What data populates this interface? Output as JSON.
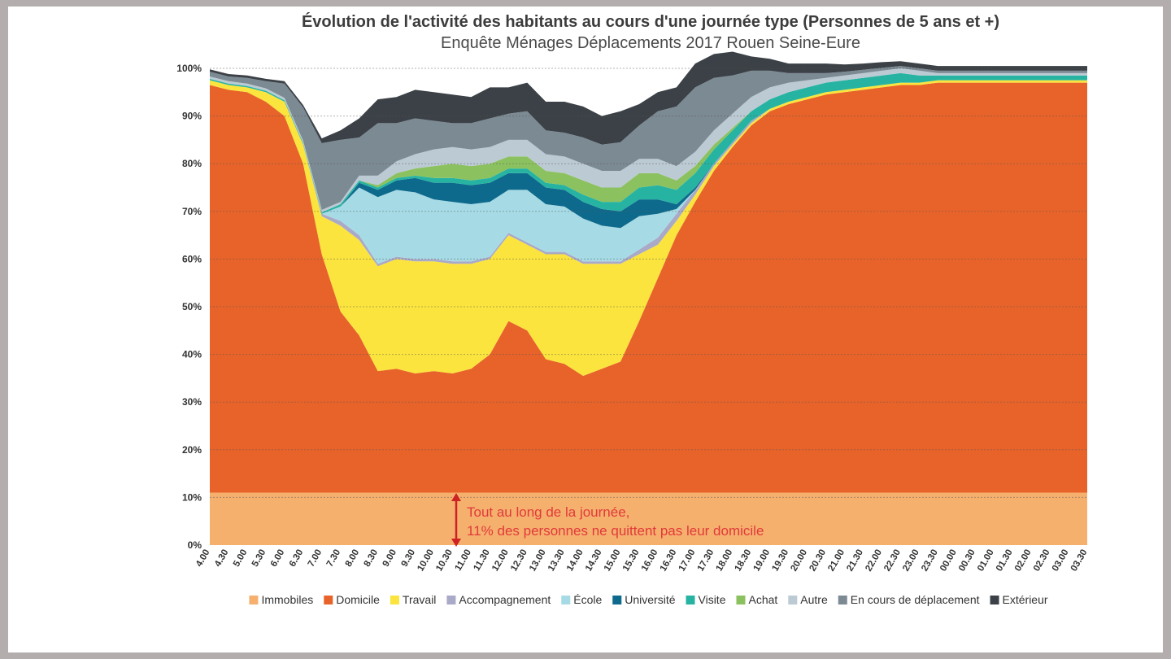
{
  "chart_data": {
    "type": "area",
    "stacked": true,
    "title": "Évolution de l'activité des habitants au cours d'une journée type (Personnes de 5 ans et +)",
    "subtitle": "Enquête Ménages Déplacements 2017 Rouen Seine-Eure",
    "y_ticks": [
      "0%",
      "10%",
      "20%",
      "30%",
      "40%",
      "50%",
      "60%",
      "70%",
      "80%",
      "90%",
      "100%"
    ],
    "ylim": [
      0,
      100
    ],
    "grid": true,
    "legend_position": "bottom",
    "categories": [
      "4.00",
      "4.30",
      "5.00",
      "5.30",
      "6.00",
      "6.30",
      "7.00",
      "7.30",
      "8.00",
      "8.30",
      "9.00",
      "9.30",
      "10.00",
      "10.30",
      "11.00",
      "11.30",
      "12.00",
      "12.30",
      "13.00",
      "13.30",
      "14.00",
      "14.30",
      "15.00",
      "15.30",
      "16.00",
      "16.30",
      "17.00",
      "17.30",
      "18.00",
      "18.30",
      "19.00",
      "19.30",
      "20.00",
      "20.30",
      "21.00",
      "21.30",
      "22.00",
      "22.30",
      "23.00",
      "23.30",
      "00.00",
      "00.30",
      "01.00",
      "01.30",
      "02.00",
      "02.30",
      "03.00",
      "03.30"
    ],
    "series": [
      {
        "name": "Immobiles",
        "color": "#f6b06e",
        "values": [
          11,
          11,
          11,
          11,
          11,
          11,
          11,
          11,
          11,
          11,
          11,
          11,
          11,
          11,
          11,
          11,
          11,
          11,
          11,
          11,
          11,
          11,
          11,
          11,
          11,
          11,
          11,
          11,
          11,
          11,
          11,
          11,
          11,
          11,
          11,
          11,
          11,
          11,
          11,
          11,
          11,
          11,
          11,
          11,
          11,
          11,
          11,
          11
        ]
      },
      {
        "name": "Domicile",
        "color": "#e8632a",
        "values": [
          85.5,
          84.5,
          84,
          82,
          79,
          69,
          50,
          38,
          33,
          25.5,
          26,
          25,
          25.5,
          25,
          26,
          29,
          36,
          34,
          28,
          27,
          24.5,
          26,
          27.5,
          36,
          45,
          54,
          61,
          67.5,
          72.5,
          77,
          80,
          81.5,
          82.5,
          83.5,
          84,
          84.5,
          85,
          85.5,
          85.5,
          86,
          86,
          86,
          86,
          86,
          86,
          86,
          86,
          86
        ]
      },
      {
        "name": "Travail",
        "color": "#fbe43d",
        "values": [
          1,
          1,
          1,
          2,
          3,
          4,
          8,
          18,
          20,
          22,
          23,
          23.5,
          23,
          23,
          22,
          20,
          18,
          18,
          22,
          23,
          23.5,
          22,
          20.5,
          14,
          7,
          3,
          1.5,
          1,
          0.5,
          0.5,
          0.5,
          0.5,
          0.5,
          0.5,
          0.5,
          0.5,
          0.5,
          0.5,
          0.5,
          0.5,
          0.5,
          0.5,
          0.5,
          0.5,
          0.5,
          0.5,
          0.5,
          0.5
        ]
      },
      {
        "name": "Accompagnement",
        "color": "#a9a9c8",
        "values": [
          0,
          0,
          0,
          0,
          0,
          0,
          0.5,
          1,
          1,
          0.5,
          0.5,
          0.5,
          0.5,
          0.5,
          0.5,
          0.5,
          0.5,
          0.5,
          0.5,
          0.5,
          0.5,
          0.5,
          0.5,
          1,
          1.5,
          1.5,
          1,
          0.5,
          0.5,
          0.5,
          0,
          0,
          0,
          0,
          0,
          0,
          0,
          0,
          0,
          0,
          0,
          0,
          0,
          0,
          0,
          0,
          0,
          0
        ]
      },
      {
        "name": "École",
        "color": "#a6dbe6",
        "values": [
          0,
          0,
          0,
          0,
          0,
          0,
          0,
          3,
          10,
          14,
          14,
          14,
          12.5,
          12.5,
          12,
          11.5,
          9,
          11,
          10,
          9.5,
          9,
          7.5,
          7,
          7,
          5,
          1,
          0,
          0,
          0,
          0,
          0,
          0,
          0,
          0,
          0,
          0,
          0,
          0,
          0,
          0,
          0,
          0,
          0,
          0,
          0,
          0,
          0,
          0
        ]
      },
      {
        "name": "Université",
        "color": "#0e6a8c",
        "values": [
          0,
          0,
          0,
          0,
          0,
          0,
          0,
          0,
          1,
          1.5,
          2,
          3,
          3.5,
          4,
          4,
          4,
          3.5,
          3.5,
          3.5,
          3.5,
          3.5,
          3.5,
          3.5,
          3.5,
          3,
          1,
          0.5,
          0,
          0,
          0,
          0,
          0,
          0,
          0,
          0,
          0,
          0,
          0,
          0,
          0,
          0,
          0,
          0,
          0,
          0,
          0,
          0,
          0
        ]
      },
      {
        "name": "Visite",
        "color": "#27b3a2",
        "values": [
          0.3,
          0.3,
          0.3,
          0.3,
          0.3,
          0.3,
          0.3,
          0.5,
          0.5,
          0.5,
          0.5,
          0.5,
          1,
          1,
          1,
          1,
          1,
          1,
          1,
          1,
          1.5,
          1.5,
          2,
          2.5,
          3,
          3,
          3,
          3,
          2.5,
          2,
          2,
          2,
          2,
          2,
          2,
          2,
          2,
          2,
          1.5,
          1,
          1,
          1,
          1,
          1,
          1,
          1,
          1,
          1
        ]
      },
      {
        "name": "Achat",
        "color": "#8cc15f",
        "values": [
          0,
          0,
          0,
          0,
          0,
          0,
          0,
          0,
          0,
          0.5,
          1,
          1.5,
          2.5,
          3,
          3,
          3,
          2.5,
          2.5,
          2.5,
          2.5,
          3,
          3,
          3,
          3,
          2.5,
          2,
          1.5,
          1,
          0.5,
          0,
          0,
          0,
          0,
          0,
          0,
          0,
          0,
          0,
          0,
          0,
          0,
          0,
          0,
          0,
          0,
          0,
          0,
          0
        ]
      },
      {
        "name": "Autre",
        "color": "#bccad4",
        "values": [
          0.5,
          0.5,
          0.5,
          0.5,
          0.5,
          0.5,
          0.5,
          0.5,
          1,
          2,
          2.5,
          3,
          3.5,
          3.5,
          3.5,
          3.5,
          3.5,
          3.5,
          3.5,
          3.5,
          3.5,
          3.5,
          3.5,
          3,
          3,
          3,
          3,
          3,
          3,
          3,
          2.5,
          2,
          1.5,
          1,
          1,
          1,
          1,
          1,
          1,
          0.5,
          0.5,
          0.5,
          0.5,
          0.5,
          0.5,
          0.5,
          0.5,
          0.5
        ]
      },
      {
        "name": "En cours de déplacement",
        "color": "#7c8a94",
        "values": [
          1,
          1,
          1.2,
          1.5,
          3,
          7,
          14,
          13,
          8,
          11,
          8,
          7.5,
          6,
          5,
          5.5,
          6,
          5.5,
          6,
          5,
          5,
          5.5,
          5.5,
          6,
          7,
          10,
          12.5,
          13.5,
          11,
          8,
          5.5,
          3.5,
          2,
          1.5,
          1,
          0.8,
          0.7,
          0.6,
          0.5,
          0.5,
          0.5,
          0.5,
          0.5,
          0.5,
          0.5,
          0.5,
          0.5,
          0.5,
          0.5
        ]
      },
      {
        "name": "Extérieur",
        "color": "#3b4146",
        "values": [
          0.5,
          0.5,
          0.5,
          0.5,
          0.5,
          0.5,
          1,
          2,
          4,
          5,
          5.5,
          6,
          6,
          6,
          5.5,
          6.5,
          5.5,
          6,
          6,
          6.5,
          6.5,
          6,
          6.5,
          4.5,
          4,
          4,
          5,
          5,
          5,
          3,
          2.5,
          2,
          2,
          2,
          1.5,
          1.3,
          1.2,
          1,
          1,
          1,
          1,
          1,
          1,
          1,
          1,
          1,
          1,
          1
        ]
      }
    ],
    "annotation": {
      "line1": "Tout au long de la journée,",
      "line2": "11% des personnes ne quittent pas leur domicile"
    }
  }
}
